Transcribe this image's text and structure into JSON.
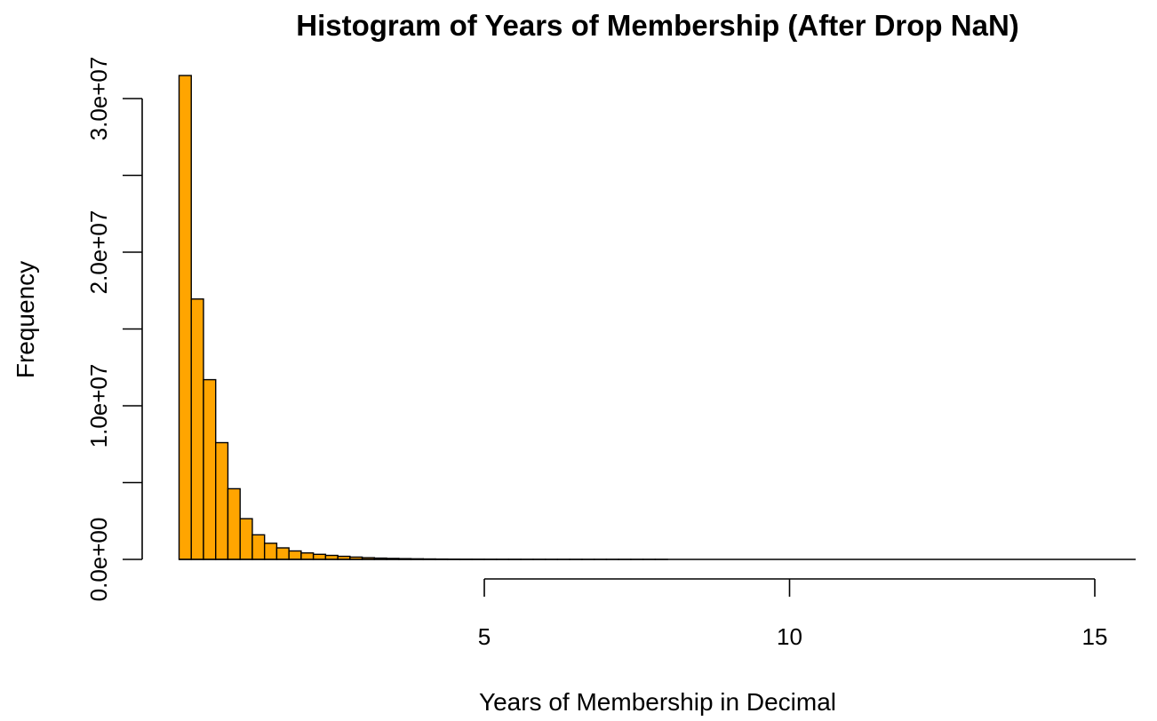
{
  "chart_data": {
    "type": "bar",
    "title": "Histogram of Years of Membership (After Drop NaN)",
    "xlabel": "Years of Membership in Decimal",
    "ylabel": "Frequency",
    "bar_color": "#FFA500",
    "bar_edge_color": "#000000",
    "grid": false,
    "xlim": [
      0,
      15.6
    ],
    "ylim": [
      0,
      30000000
    ],
    "x_ticks": [
      {
        "value": 5,
        "label": "5"
      },
      {
        "value": 10,
        "label": "10"
      },
      {
        "value": 15,
        "label": "15"
      }
    ],
    "y_ticks": [
      {
        "value": 0,
        "label": "0.0e+00"
      },
      {
        "value": 5000000,
        "label": ""
      },
      {
        "value": 10000000,
        "label": "1.0e+07"
      },
      {
        "value": 15000000,
        "label": ""
      },
      {
        "value": 20000000,
        "label": "2.0e+07"
      },
      {
        "value": 25000000,
        "label": ""
      },
      {
        "value": 30000000,
        "label": "3.0e+07"
      }
    ],
    "bin_width": 0.2,
    "bin_start": 0,
    "values": [
      31500000,
      16950000,
      11700000,
      7600000,
      4600000,
      2650000,
      1600000,
      1050000,
      750000,
      550000,
      420000,
      330000,
      260000,
      200000,
      150000,
      110000,
      85000,
      65000,
      50000,
      38000,
      29000,
      22000,
      17000,
      13000,
      10000,
      8000,
      6500,
      5000,
      4000,
      3200,
      2500,
      2000,
      1600,
      1300,
      1000,
      800,
      650,
      520,
      420,
      340,
      270,
      220,
      180,
      145,
      115,
      95,
      75,
      60,
      50,
      40,
      32,
      26,
      21,
      17,
      14,
      11,
      9,
      7,
      6,
      5,
      4,
      3,
      3,
      2,
      2,
      2,
      1,
      1,
      1,
      1,
      1,
      1,
      1,
      1,
      1,
      1,
      1,
      1
    ]
  }
}
